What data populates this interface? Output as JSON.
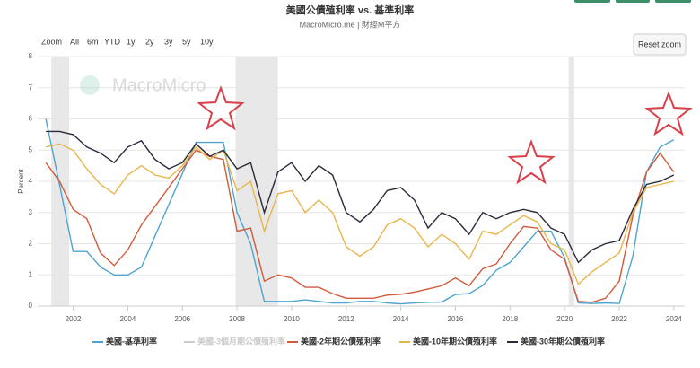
{
  "toolbar": {
    "zoom_label": "Zoom",
    "buttons": [
      "All",
      "6m",
      "YTD",
      "1y",
      "2y",
      "3y",
      "5y",
      "10y"
    ],
    "reset": "Reset zoom"
  },
  "chart_data": {
    "type": "line",
    "title": "美國公債殖利率 vs. 基準利率",
    "subtitle": "MacroMicro.me | 財經M平方",
    "watermark": "MacroMicro",
    "y_label": "Percent",
    "x": [
      2001.0,
      2001.5,
      2002.0,
      2002.5,
      2003.0,
      2003.5,
      2004.0,
      2004.5,
      2005.0,
      2005.5,
      2006.0,
      2006.5,
      2007.0,
      2007.5,
      2008.0,
      2008.5,
      2009.0,
      2009.5,
      2010.0,
      2010.5,
      2011.0,
      2011.5,
      2012.0,
      2012.5,
      2013.0,
      2013.5,
      2014.0,
      2014.5,
      2015.0,
      2015.5,
      2016.0,
      2016.5,
      2017.0,
      2017.5,
      2018.0,
      2018.5,
      2019.0,
      2019.5,
      2020.0,
      2020.5,
      2021.0,
      2021.5,
      2022.0,
      2022.5,
      2023.0,
      2023.5,
      2024.0
    ],
    "xlim": [
      2000.7,
      2024.4
    ],
    "xticks": [
      2002,
      2004,
      2006,
      2008,
      2010,
      2012,
      2014,
      2016,
      2018,
      2020,
      2022,
      2024
    ],
    "ylim": [
      0,
      8
    ],
    "yticks": [
      0,
      1,
      2,
      3,
      4,
      5,
      6,
      7,
      8
    ],
    "grid": true,
    "shaded_ranges": [
      [
        2001.2,
        2001.85
      ],
      [
        2007.95,
        2009.5
      ],
      [
        2020.15,
        2020.35
      ]
    ],
    "shade_color": "#e8e8e8",
    "series": [
      {
        "name": "美國-基準利率",
        "color": "#4ea4cf",
        "values": [
          6.0,
          3.9,
          1.75,
          1.75,
          1.25,
          1.0,
          1.0,
          1.25,
          2.25,
          3.25,
          4.25,
          5.25,
          5.25,
          5.25,
          3.0,
          2.0,
          0.15,
          0.15,
          0.15,
          0.2,
          0.15,
          0.1,
          0.1,
          0.15,
          0.15,
          0.1,
          0.07,
          0.1,
          0.12,
          0.13,
          0.37,
          0.4,
          0.66,
          1.15,
          1.4,
          1.9,
          2.4,
          2.4,
          1.55,
          0.1,
          0.08,
          0.1,
          0.08,
          1.6,
          4.3,
          5.1,
          5.33
        ]
      },
      {
        "name": "美國-3個月期公債殖利率",
        "color": "#cccccc",
        "visible": false
      },
      {
        "name": "美國-2年期公債殖利率",
        "color": "#d2593a",
        "values": [
          4.6,
          4.0,
          3.1,
          2.8,
          1.7,
          1.3,
          1.8,
          2.6,
          3.2,
          3.8,
          4.4,
          5.0,
          4.8,
          4.7,
          2.4,
          2.5,
          0.8,
          1.0,
          0.9,
          0.6,
          0.6,
          0.4,
          0.25,
          0.25,
          0.25,
          0.35,
          0.38,
          0.45,
          0.55,
          0.65,
          0.9,
          0.65,
          1.2,
          1.35,
          2.0,
          2.55,
          2.5,
          1.8,
          1.5,
          0.15,
          0.12,
          0.25,
          0.8,
          2.9,
          4.3,
          4.9,
          4.3
        ]
      },
      {
        "name": "美國-10年期公債殖利率",
        "color": "#e9b54a",
        "values": [
          5.1,
          5.2,
          5.0,
          4.4,
          3.9,
          3.6,
          4.2,
          4.5,
          4.2,
          4.1,
          4.5,
          5.1,
          4.7,
          5.0,
          3.7,
          4.0,
          2.4,
          3.6,
          3.7,
          3.0,
          3.4,
          3.0,
          1.9,
          1.6,
          1.9,
          2.6,
          2.8,
          2.5,
          1.9,
          2.3,
          2.0,
          1.5,
          2.4,
          2.3,
          2.6,
          2.9,
          2.7,
          2.0,
          1.8,
          0.7,
          1.1,
          1.4,
          1.7,
          3.0,
          3.8,
          3.9,
          4.0
        ]
      },
      {
        "name": "美國-30年期公債殖利率",
        "color": "#2a2a3a",
        "values": [
          5.6,
          5.6,
          5.5,
          5.1,
          4.9,
          4.6,
          5.1,
          5.3,
          4.7,
          4.4,
          4.6,
          5.2,
          4.8,
          5.0,
          4.4,
          4.6,
          3.0,
          4.3,
          4.6,
          4.0,
          4.5,
          4.2,
          3.0,
          2.7,
          3.1,
          3.7,
          3.8,
          3.4,
          2.5,
          3.0,
          2.8,
          2.3,
          3.0,
          2.8,
          3.0,
          3.1,
          3.0,
          2.5,
          2.3,
          1.4,
          1.8,
          2.0,
          2.1,
          3.1,
          3.9,
          4.0,
          4.2
        ]
      }
    ]
  }
}
